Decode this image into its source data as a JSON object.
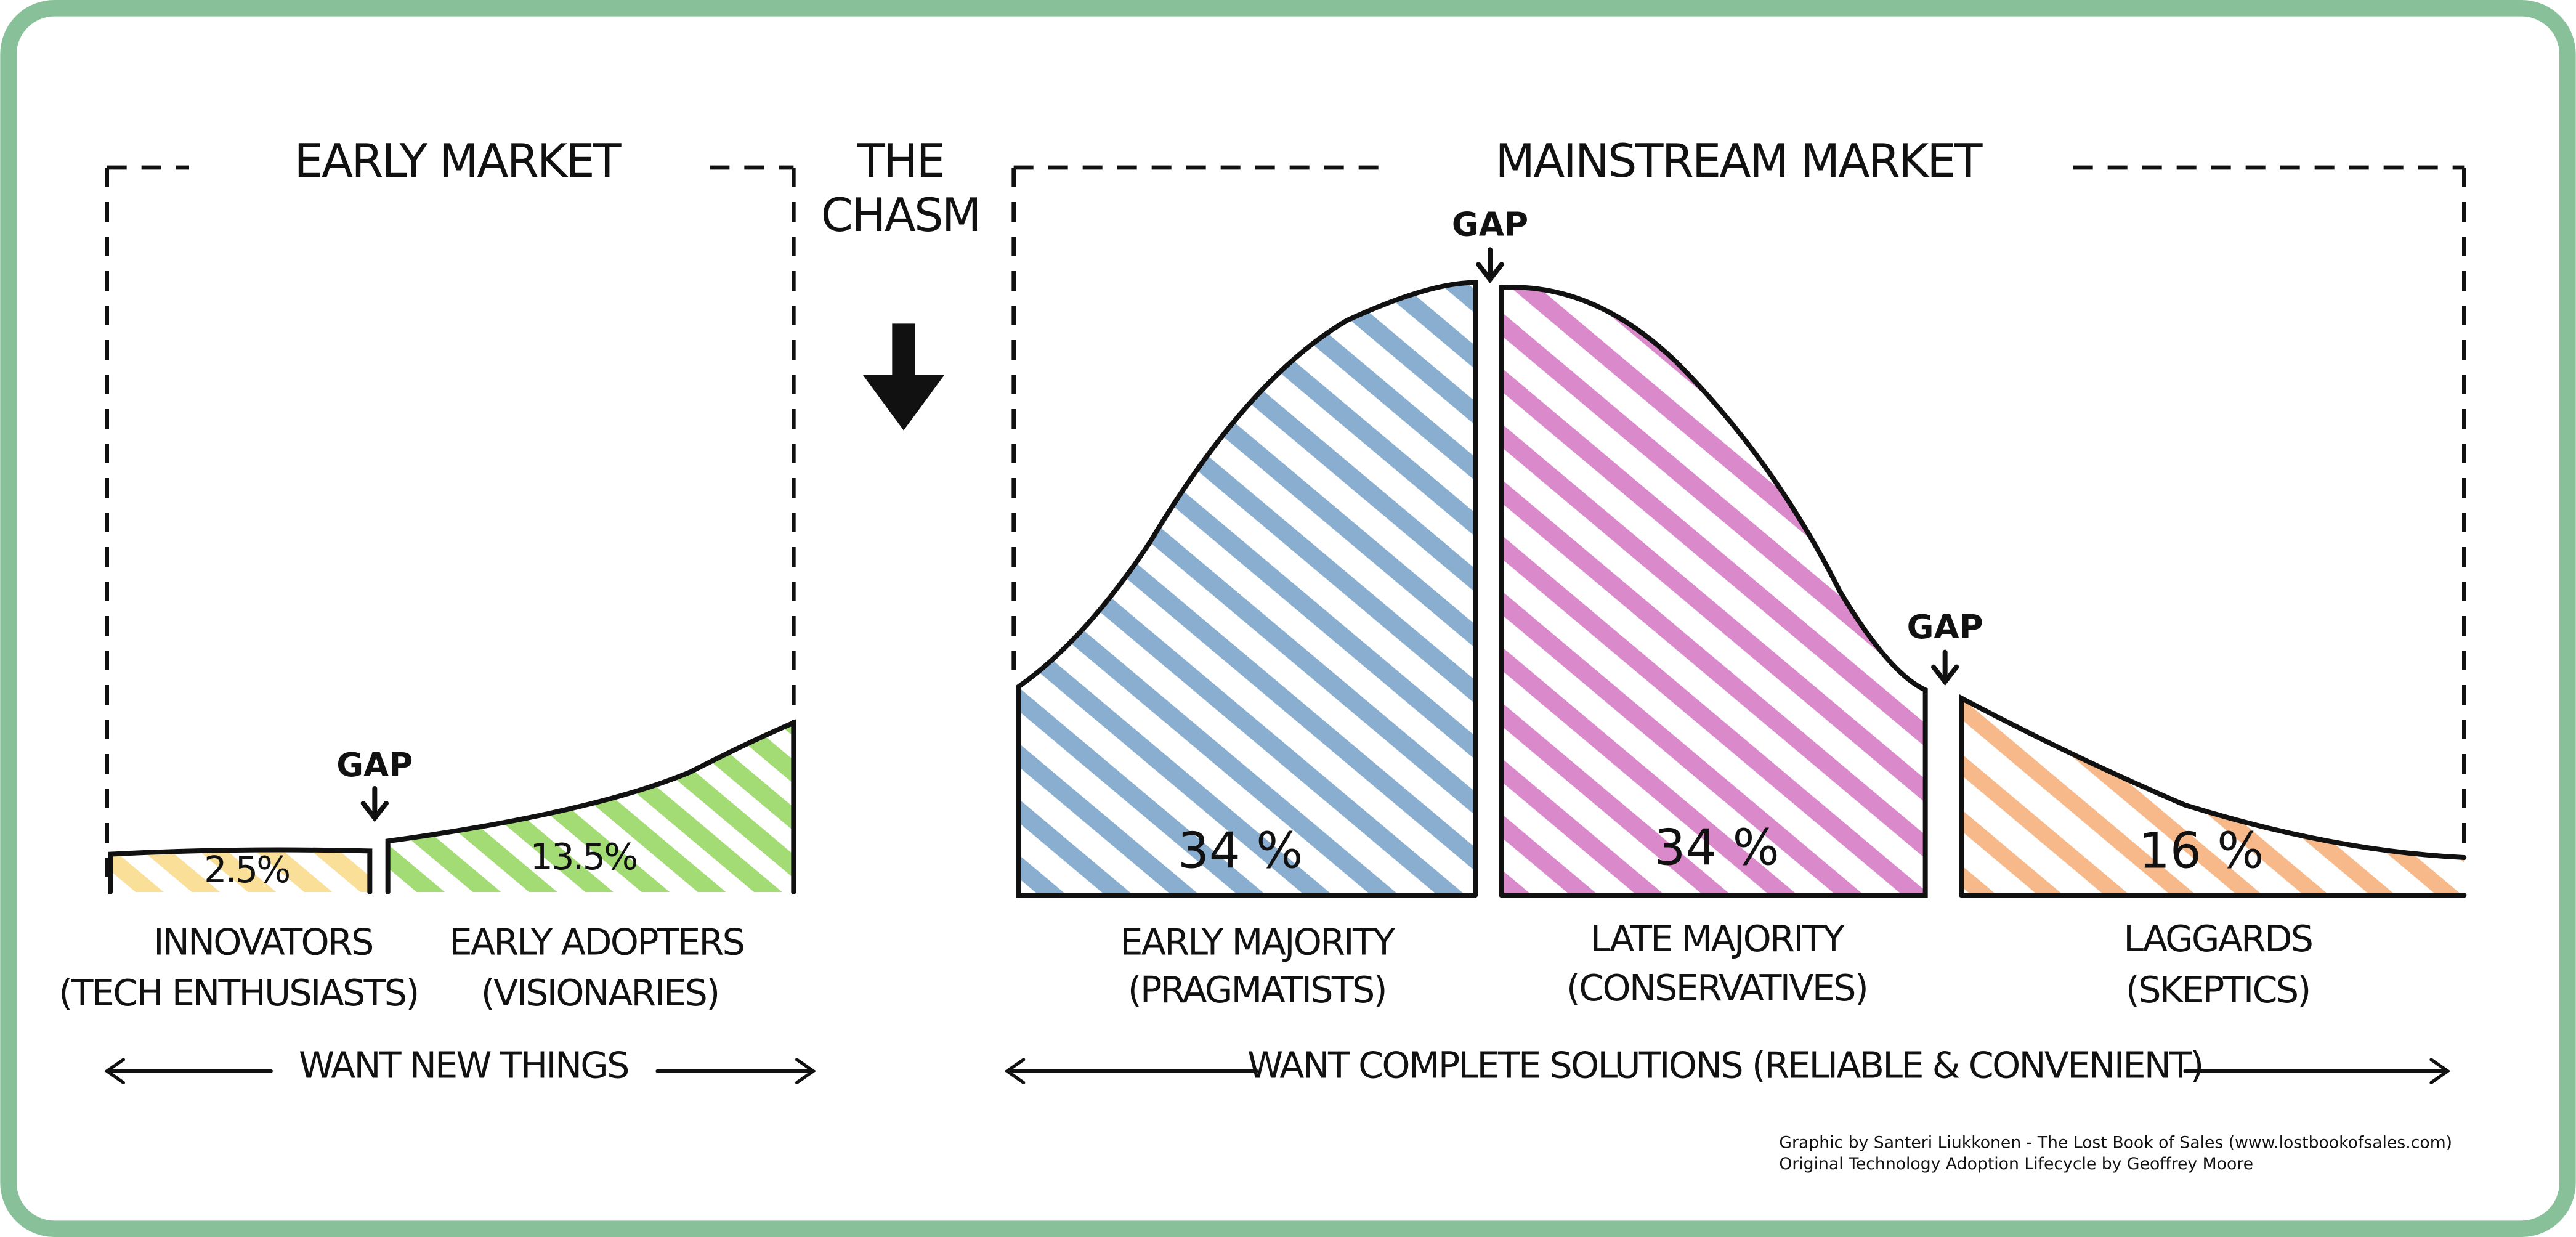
{
  "early_market": {
    "title": "EARLY MARKET",
    "segments": [
      {
        "share": "2.5%",
        "label": "INNOVATORS",
        "sublabel": "(TECH ENTHUSIASTS)"
      },
      {
        "share": "13.5%",
        "label": "EARLY ADOPTERS",
        "sublabel": "(VISIONARIES)"
      }
    ],
    "arrow_label": "WANT NEW THINGS"
  },
  "chasm": {
    "lines": [
      "THE",
      "CHASM"
    ]
  },
  "mainstream_market": {
    "title": "MAINSTREAM MARKET",
    "segments": [
      {
        "share": "34 %",
        "label": "EARLY MAJORITY",
        "sublabel": "(PRAGMATISTS)"
      },
      {
        "share": "34 %",
        "label": "LATE MAJORITY",
        "sublabel": "(CONSERVATIVES)"
      },
      {
        "share": "16 %",
        "label": "LAGGARDS",
        "sublabel": "(SKEPTICS)"
      }
    ],
    "arrow_label": "WANT COMPLETE SOLUTIONS (RELIABLE & CONVENIENT)"
  },
  "gaps": [
    "GAP",
    "GAP",
    "GAP"
  ],
  "credits": [
    "Graphic by Santeri Liukkonen - The Lost Book of Sales (www.lostbookofsales.com)",
    "Original Technology Adoption Lifecycle by Geoffrey Moore"
  ]
}
